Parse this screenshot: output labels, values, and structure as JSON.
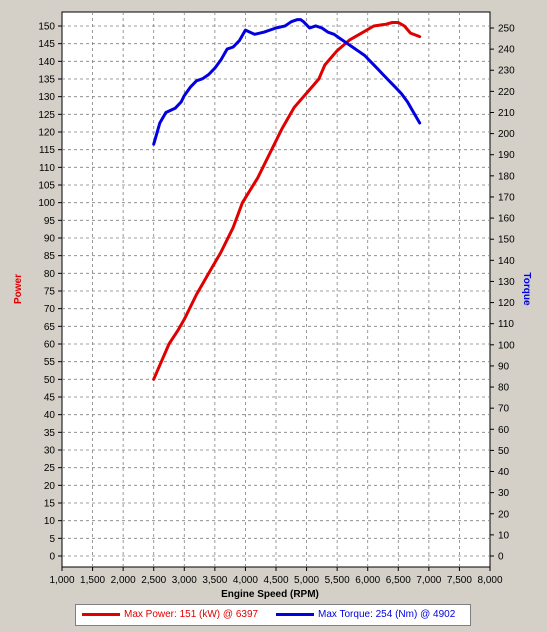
{
  "chart_data": {
    "type": "line",
    "xlabel": "Engine Speed (RPM)",
    "x_ticks": [
      "1,000",
      "1,500",
      "2,000",
      "2,500",
      "3,000",
      "3,500",
      "4,000",
      "4,500",
      "5,000",
      "5,500",
      "6,000",
      "6,500",
      "7,000",
      "7,500",
      "8,000"
    ],
    "xlim": [
      1000,
      8000
    ],
    "left_axis": {
      "label": "Power",
      "color": "#e00000",
      "ylim": [
        0,
        150
      ],
      "ticks": [
        0,
        5,
        10,
        15,
        20,
        25,
        30,
        35,
        40,
        45,
        50,
        55,
        60,
        65,
        70,
        75,
        80,
        85,
        90,
        95,
        100,
        105,
        110,
        115,
        120,
        125,
        130,
        135,
        140,
        145,
        150
      ]
    },
    "right_axis": {
      "label": "Torque",
      "color": "#0000e0",
      "ylim": [
        0,
        250
      ],
      "ticks": [
        0,
        10,
        20,
        30,
        40,
        50,
        60,
        70,
        80,
        90,
        100,
        110,
        120,
        130,
        140,
        150,
        160,
        170,
        180,
        190,
        200,
        210,
        220,
        230,
        240,
        250
      ]
    },
    "grid": true,
    "series": [
      {
        "name": "Power",
        "axis": "left",
        "color": "#e00000",
        "x": [
          2500,
          2600,
          2750,
          2900,
          3000,
          3200,
          3400,
          3600,
          3800,
          3950,
          4200,
          4400,
          4600,
          4800,
          5000,
          5100,
          5200,
          5300,
          5500,
          5700,
          5900,
          6100,
          6300,
          6400,
          6500,
          6600,
          6700,
          6850
        ],
        "y": [
          50,
          54,
          60,
          64,
          67,
          74,
          80,
          86,
          93,
          100,
          107,
          114,
          121,
          127,
          131,
          133,
          135,
          139,
          143,
          146,
          148,
          150,
          150.5,
          151,
          151,
          150,
          148,
          147
        ]
      },
      {
        "name": "Torque",
        "axis": "right",
        "color": "#0000e0",
        "x": [
          2500,
          2550,
          2600,
          2700,
          2850,
          2950,
          3000,
          3100,
          3200,
          3300,
          3400,
          3500,
          3600,
          3700,
          3800,
          3900,
          4000,
          4150,
          4300,
          4500,
          4650,
          4750,
          4850,
          4902,
          4950,
          5050,
          5150,
          5250,
          5350,
          5450,
          5550,
          5650,
          5750,
          5850,
          5950,
          6050,
          6150,
          6250,
          6350,
          6450,
          6550,
          6650,
          6750,
          6850
        ],
        "y": [
          195,
          200,
          205,
          210,
          212,
          215,
          218,
          222,
          225,
          226,
          228,
          231,
          235,
          240,
          241,
          244,
          249,
          247,
          248,
          250,
          251,
          253,
          254,
          254,
          253,
          250,
          251,
          250,
          248,
          247,
          245,
          243,
          241,
          239,
          237,
          234,
          231,
          228,
          225,
          222,
          219,
          215,
          210,
          205
        ]
      }
    ]
  },
  "legend": {
    "power_text": "Max Power: 151 (kW) @ 6397",
    "torque_text": "Max Torque: 254 (Nm) @ 4902"
  }
}
